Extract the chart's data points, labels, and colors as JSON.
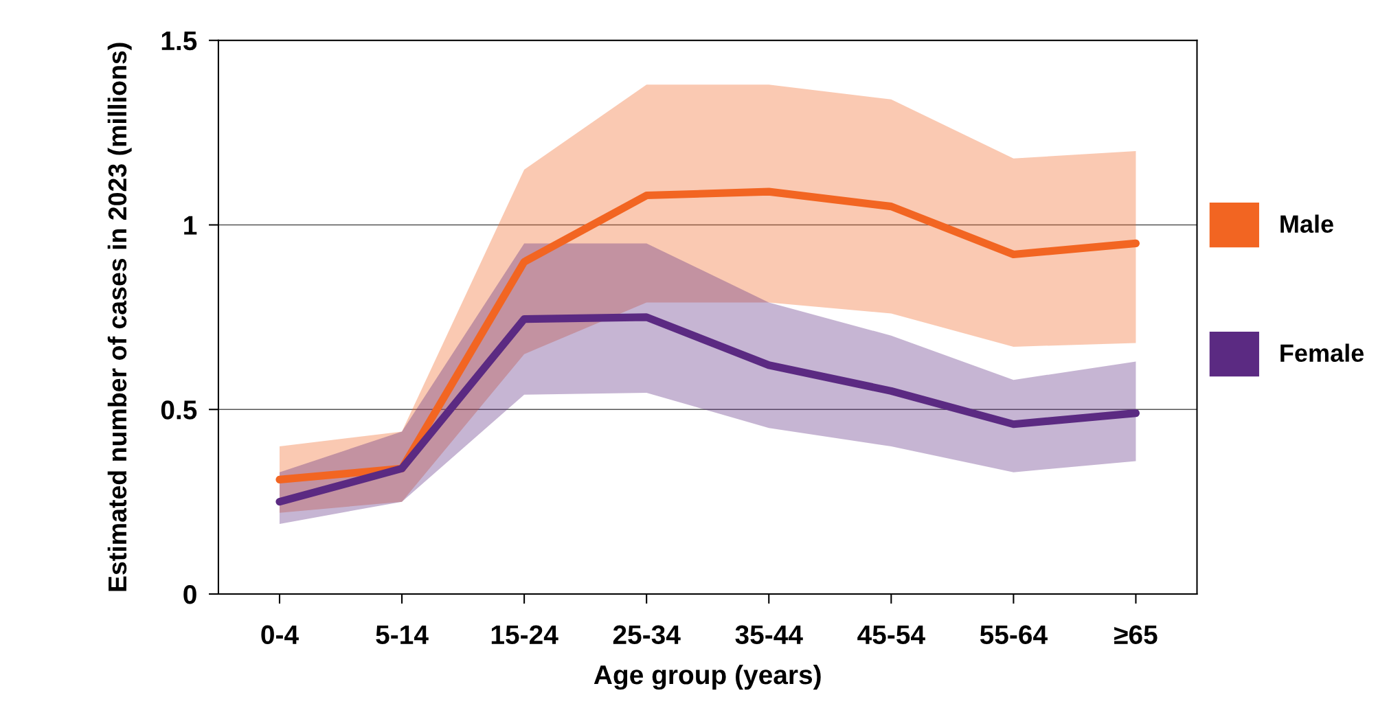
{
  "chart_data": {
    "type": "line",
    "xlabel": "Age group (years)",
    "ylabel": "Estimated number of cases in 2023 (millions)",
    "categories": [
      "0-4",
      "5-14",
      "15-24",
      "25-34",
      "35-44",
      "45-54",
      "55-64",
      "≥65"
    ],
    "series": [
      {
        "name": "Male",
        "color": "#f26522",
        "values": [
          0.31,
          0.34,
          0.9,
          1.08,
          1.09,
          1.05,
          0.92,
          0.95
        ],
        "lower": [
          0.22,
          0.25,
          0.65,
          0.79,
          0.79,
          0.76,
          0.67,
          0.68
        ],
        "upper": [
          0.4,
          0.44,
          1.15,
          1.38,
          1.38,
          1.34,
          1.18,
          1.2
        ]
      },
      {
        "name": "Female",
        "color": "#5b2a82",
        "values": [
          0.25,
          0.34,
          0.745,
          0.75,
          0.62,
          0.55,
          0.46,
          0.49
        ],
        "lower": [
          0.19,
          0.25,
          0.54,
          0.545,
          0.45,
          0.4,
          0.33,
          0.36
        ],
        "upper": [
          0.33,
          0.44,
          0.95,
          0.95,
          0.79,
          0.7,
          0.58,
          0.63
        ]
      }
    ],
    "ylim": [
      0,
      1.5
    ],
    "yticks": [
      0,
      0.5,
      1,
      1.5
    ],
    "grid": "y",
    "legend": "right",
    "marker": "none",
    "line_style": "solid"
  }
}
